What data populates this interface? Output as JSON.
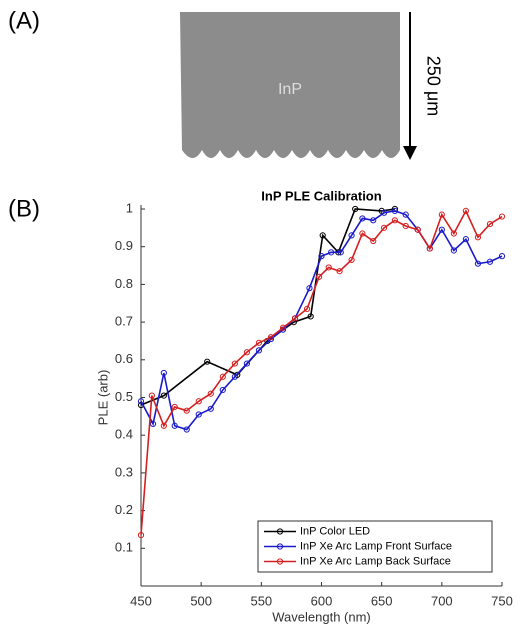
{
  "panel_a": {
    "label": "(A)",
    "material": "InP",
    "thickness": "250 μm"
  },
  "panel_b": {
    "label": "(B)"
  },
  "chart_data": {
    "type": "line",
    "title": "InP PLE Calibration",
    "x_label": "Wavelength (nm)",
    "y_label": "PLE (arb)",
    "xlim": [
      450,
      750
    ],
    "ylim": [
      0,
      1
    ],
    "xticks": [
      450,
      500,
      550,
      600,
      650,
      700,
      750
    ],
    "yticks": [
      0.1,
      0.2,
      0.3,
      0.4,
      0.5,
      0.6,
      0.7,
      0.8,
      0.9,
      1
    ],
    "legend": "lower right",
    "series": [
      {
        "name": "InP Color LED",
        "color": "#000000",
        "x": [
          450,
          469,
          505,
          530,
          555,
          577,
          591,
          601,
          614,
          628,
          650,
          661
        ],
        "values": [
          0.48,
          0.505,
          0.595,
          0.56,
          0.65,
          0.7,
          0.715,
          0.93,
          0.885,
          1.0,
          0.995,
          1.0
        ]
      },
      {
        "name": "InP Xe Arc Lamp Front Surface",
        "color": "#1a1acc",
        "x": [
          450,
          460,
          469,
          478,
          488,
          498,
          508,
          518,
          528,
          538,
          548,
          558,
          568,
          578,
          590,
          600,
          608,
          616,
          625,
          634,
          643,
          652,
          661,
          670,
          680,
          690,
          700,
          710,
          720,
          730,
          740,
          750
        ],
        "values": [
          0.49,
          0.43,
          0.565,
          0.425,
          0.415,
          0.455,
          0.47,
          0.52,
          0.555,
          0.59,
          0.625,
          0.655,
          0.68,
          0.71,
          0.79,
          0.875,
          0.885,
          0.885,
          0.93,
          0.975,
          0.97,
          0.99,
          0.995,
          0.985,
          0.945,
          0.895,
          0.945,
          0.89,
          0.92,
          0.855,
          0.86,
          0.875
        ]
      },
      {
        "name": "InP Xe Arc Lamp Back Surface",
        "color": "#d42020",
        "x": [
          450,
          459,
          469,
          478,
          488,
          498,
          508,
          518,
          528,
          538,
          548,
          558,
          568,
          578,
          588,
          598,
          606,
          615,
          625,
          634,
          643,
          652,
          661,
          670,
          680,
          690,
          700,
          710,
          720,
          730,
          740,
          750
        ],
        "values": [
          0.135,
          0.505,
          0.425,
          0.475,
          0.465,
          0.49,
          0.51,
          0.555,
          0.59,
          0.62,
          0.645,
          0.66,
          0.685,
          0.71,
          0.735,
          0.82,
          0.845,
          0.835,
          0.865,
          0.935,
          0.915,
          0.95,
          0.97,
          0.955,
          0.945,
          0.895,
          0.985,
          0.935,
          0.995,
          0.925,
          0.96,
          0.98
        ]
      }
    ]
  }
}
